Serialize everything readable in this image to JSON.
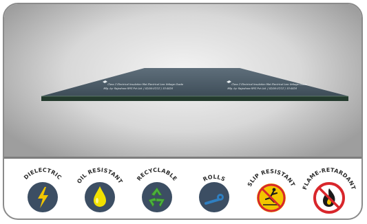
{
  "board": {
    "print_line_1": "Class 2 Electrical Insulation Mat Electrical Low Voltage Grade",
    "print_line_2": "Mfg. by: Rajashree RPG Pvt Ltd. | 02/04-07/12 | 33-0024"
  },
  "features": [
    {
      "label": "DIELECTRIC",
      "icon": "lightning-bolt-icon",
      "color": "#3c4e63"
    },
    {
      "label": "OIL RESISTANT",
      "icon": "oil-drop-icon",
      "color": "#3c4e63"
    },
    {
      "label": "RECYCLABLE",
      "icon": "recycle-icon",
      "color": "#3c4e63"
    },
    {
      "label": "ROLLS",
      "icon": "roll-icon",
      "color": "#3c4e63"
    },
    {
      "label": "SLIP RESISTANT",
      "icon": "slip-warning-icon",
      "color": "#f2c500"
    },
    {
      "label": "FLAME-RETARDANT",
      "icon": "no-fire-icon",
      "color": "#d8262b"
    }
  ]
}
